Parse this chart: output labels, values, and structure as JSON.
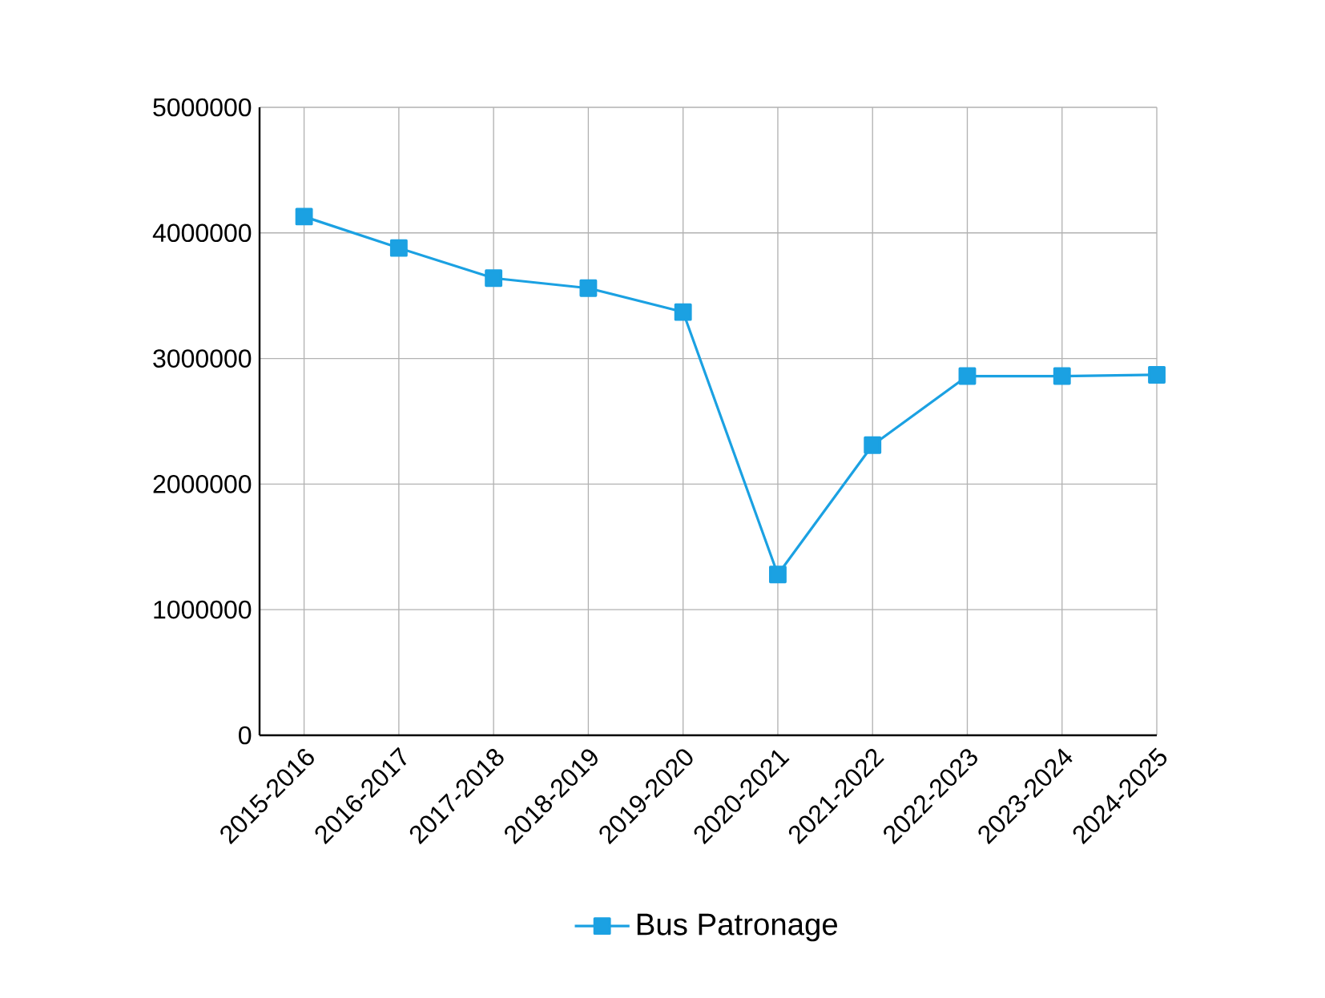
{
  "chart_data": {
    "type": "line",
    "categories": [
      "2015-2016",
      "2016-2017",
      "2017-2018",
      "2018-2019",
      "2019-2020",
      "2020-2021",
      "2021-2022",
      "2022-2023",
      "2023-2024",
      "2024-2025"
    ],
    "series": [
      {
        "name": "Bus Patronage",
        "color": "#1ba1e2",
        "values": [
          4130000,
          3880000,
          3640000,
          3560000,
          3370000,
          1280000,
          2310000,
          2860000,
          2860000,
          2870000
        ]
      }
    ],
    "ylim": [
      0,
      5000000
    ],
    "yticks": [
      0,
      1000000,
      2000000,
      3000000,
      4000000,
      5000000
    ],
    "grid": true,
    "legend": "bottom",
    "marker": "square",
    "line_style": "solid"
  }
}
